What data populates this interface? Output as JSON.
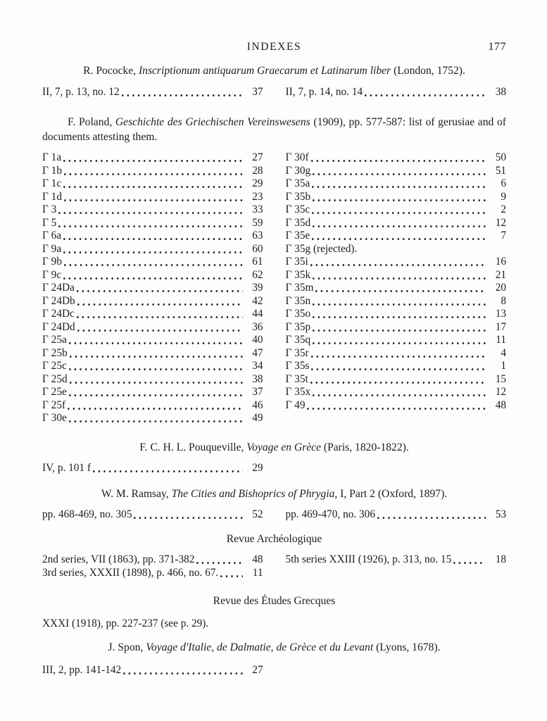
{
  "colors": {
    "paper": "#fdfdfc",
    "ink": "#1d1d1d"
  },
  "header": {
    "title": "INDEXES",
    "page_number": "177"
  },
  "sections": [
    {
      "id": "pococke",
      "heading": {
        "align": "center",
        "parts": [
          {
            "text": "R. Pococke, ",
            "italic": false
          },
          {
            "text": "Inscriptionum antiquarum Graecarum et Latinarum liber",
            "italic": true
          },
          {
            "text": " (London, 1752).",
            "italic": false
          }
        ]
      },
      "list": {
        "columns": [
          [
            {
              "label": "II, 7, p. 13, no. 12",
              "page": "37"
            }
          ],
          [
            {
              "label": "II, 7, p. 14, no. 14",
              "page": "38"
            }
          ]
        ]
      }
    },
    {
      "id": "poland",
      "heading": {
        "align": "indent",
        "parts": [
          {
            "text": "F. Poland, ",
            "italic": false
          },
          {
            "text": "Geschichte des Griechischen Vereinswesens",
            "italic": true
          },
          {
            "text": " (1909), pp. 577-587: list of gerusiae and of documents attesting them.",
            "italic": false
          }
        ]
      },
      "list": {
        "columns": [
          [
            {
              "label": "Γ 1a",
              "page": "27"
            },
            {
              "label": "Γ 1b",
              "page": "28"
            },
            {
              "label": "Γ 1c",
              "page": "29"
            },
            {
              "label": "Γ 1d",
              "page": "23"
            },
            {
              "label": "Γ 3",
              "page": "33"
            },
            {
              "label": "Γ 5",
              "page": "59"
            },
            {
              "label": "Γ 6a",
              "page": "63"
            },
            {
              "label": "Γ 9a",
              "page": "60"
            },
            {
              "label": "Γ 9b",
              "page": "61"
            },
            {
              "label": "Γ 9c",
              "page": "62"
            },
            {
              "label": "Γ 24Da",
              "page": "39"
            },
            {
              "label": "Γ 24Db",
              "page": "42"
            },
            {
              "label": "Γ 24Dc",
              "page": "44"
            },
            {
              "label": "Γ 24Dd",
              "page": "36"
            },
            {
              "label": "Γ 25a",
              "page": "40"
            },
            {
              "label": "Γ 25b",
              "page": "47"
            },
            {
              "label": "Γ 25c",
              "page": "34"
            },
            {
              "label": "Γ 25d",
              "page": "38"
            },
            {
              "label": "Γ 25e",
              "page": "37"
            },
            {
              "label": "Γ 25f",
              "page": "46"
            },
            {
              "label": "Γ 30e",
              "page": "49"
            }
          ],
          [
            {
              "label": "Γ 30f",
              "page": "50"
            },
            {
              "label": "Γ 30g",
              "page": "51"
            },
            {
              "label": "Γ 35a",
              "page": "6"
            },
            {
              "label": "Γ 35b",
              "page": "9"
            },
            {
              "label": "Γ 35c",
              "page": "2"
            },
            {
              "label": "Γ 35d",
              "page": "12"
            },
            {
              "label": "Γ 35e",
              "page": "7"
            },
            {
              "label": "Γ 35g (rejected).",
              "page": null
            },
            {
              "label": "Γ 35i",
              "page": "16"
            },
            {
              "label": "Γ 35k",
              "page": "21"
            },
            {
              "label": "Γ 35m",
              "page": "20"
            },
            {
              "label": "Γ 35n",
              "page": "8"
            },
            {
              "label": "Γ 35o",
              "page": "13"
            },
            {
              "label": "Γ 35p",
              "page": "17"
            },
            {
              "label": "Γ 35q",
              "page": "11"
            },
            {
              "label": "Γ 35r",
              "page": "4"
            },
            {
              "label": "Γ 35s",
              "page": "1"
            },
            {
              "label": "Γ 35t",
              "page": "15"
            },
            {
              "label": "Γ 35x",
              "page": "12"
            },
            {
              "label": "Γ 49",
              "page": "48"
            }
          ]
        ]
      }
    },
    {
      "id": "pouqueville",
      "heading": {
        "align": "center",
        "parts": [
          {
            "text": "F. C. H. L. Pouqueville, ",
            "italic": false
          },
          {
            "text": "Voyage en Grèce",
            "italic": true
          },
          {
            "text": " (Paris, 1820-1822).",
            "italic": false
          }
        ]
      },
      "list": {
        "columns": [
          [
            {
              "label": "IV, p. 101 f",
              "page": "29"
            }
          ],
          []
        ]
      }
    },
    {
      "id": "ramsay",
      "heading": {
        "align": "center",
        "parts": [
          {
            "text": "W. M. Ramsay, ",
            "italic": false
          },
          {
            "text": "The Cities and Bishoprics of Phrygia",
            "italic": true
          },
          {
            "text": ", I, Part 2 (Oxford, 1897).",
            "italic": false
          }
        ]
      },
      "list": {
        "columns": [
          [
            {
              "label": "pp. 468-469, no. 305",
              "page": "52"
            }
          ],
          [
            {
              "label": "pp. 469-470, no. 306",
              "page": "53"
            }
          ]
        ]
      }
    },
    {
      "id": "revue-archeologique",
      "heading": {
        "align": "center",
        "parts": [
          {
            "text": "Revue Archéologique",
            "italic": false
          }
        ]
      },
      "list": {
        "columns": [
          [
            {
              "label": "2nd series, VII (1863), pp. 371-382",
              "page": "48"
            },
            {
              "label": "3rd series, XXXII (1898), p. 466, no. 67.",
              "page": "11"
            }
          ],
          [
            {
              "label": "5th series XXIII (1926), p. 313, no. 15",
              "page": "18"
            }
          ]
        ]
      }
    },
    {
      "id": "revue-etudes-grecques",
      "heading": {
        "align": "center",
        "parts": [
          {
            "text": "Revue des Études Grecques",
            "italic": false
          }
        ]
      },
      "list": {
        "columns": [
          [
            {
              "label": "XXXI (1918), pp. 227-237 (see p. 29).",
              "page": null
            }
          ],
          []
        ]
      }
    },
    {
      "id": "spon",
      "heading": {
        "align": "center",
        "parts": [
          {
            "text": "J. Spon, ",
            "italic": false
          },
          {
            "text": "Voyage d'Italie, de Dalmatie, de Grèce et du Levant",
            "italic": true
          },
          {
            "text": " (Lyons, 1678).",
            "italic": false
          }
        ]
      },
      "list": {
        "columns": [
          [
            {
              "label": "III, 2, pp. 141-142",
              "page": "27"
            }
          ],
          []
        ]
      }
    }
  ]
}
